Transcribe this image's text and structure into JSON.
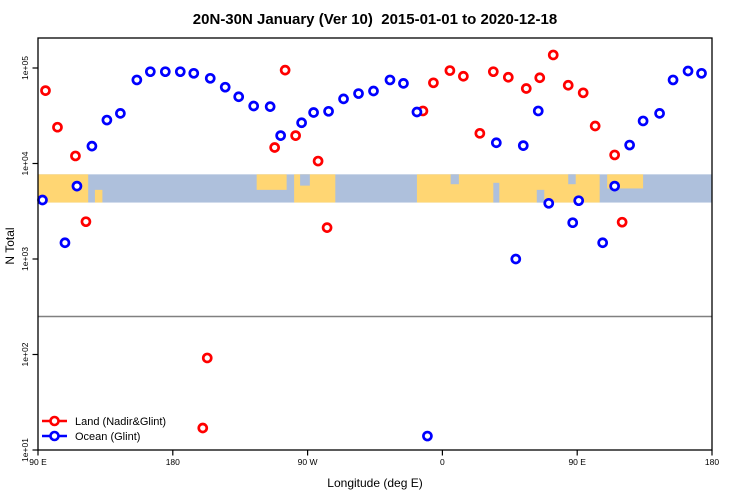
{
  "title": "20N-30N January (Ver 10)  2015-01-01 to 2020-12-18",
  "xlabel": "Longitude (deg E)",
  "ylabel": "N Total",
  "colors": {
    "land_series": "#ff0000",
    "ocean_series": "#0000ff",
    "map_land": "#ffd673",
    "map_ocean": "#aec0dc",
    "threshold_line": "#808080",
    "axis": "#000000"
  },
  "legend": {
    "items": [
      {
        "label": "Land (Nadir&Glint)",
        "color_key": "land_series"
      },
      {
        "label": "Ocean (Glint)",
        "color_key": "ocean_series"
      }
    ]
  },
  "chart_data": {
    "type": "scatter",
    "x_axis": {
      "label": "Longitude (deg E)",
      "range_unwrapped_degE": [
        90,
        540
      ],
      "ticks": [
        90,
        180,
        270,
        360,
        450,
        540
      ],
      "tick_labels": [
        "90 E",
        "180",
        "90 W",
        "0",
        "90 E",
        "180"
      ]
    },
    "y_axis": {
      "label": "N Total",
      "scale": "log",
      "ticks": [
        10,
        100,
        1000,
        10000,
        100000
      ],
      "tick_labels": [
        "1e+01",
        "1e+02",
        "1e+03",
        "1e+04",
        "1e+05"
      ]
    },
    "threshold_line_value": 250,
    "map_strip": {
      "value_top": 7700,
      "value_bottom": 3900,
      "land_segments": [
        {
          "from": 90,
          "to": 123.5,
          "top": 0,
          "bottom": 1
        },
        {
          "from": 128,
          "to": 133,
          "top": 0.55,
          "bottom": 1
        },
        {
          "from": 236,
          "to": 256,
          "top": 0,
          "bottom": 0.55
        },
        {
          "from": 261,
          "to": 288.5,
          "top": 0,
          "bottom": 1
        },
        {
          "from": 343,
          "to": 465,
          "top": 0,
          "bottom": 1
        },
        {
          "from": 470,
          "to": 494,
          "top": 0,
          "bottom": 0.5
        }
      ],
      "ocean_notches": [
        {
          "from": 265,
          "to": 271.5,
          "top": 0,
          "bottom": 0.4
        },
        {
          "from": 365.5,
          "to": 371,
          "top": 0,
          "bottom": 0.35
        },
        {
          "from": 394,
          "to": 398,
          "top": 0.3,
          "bottom": 1
        },
        {
          "from": 423,
          "to": 428,
          "top": 0.55,
          "bottom": 1
        },
        {
          "from": 444,
          "to": 449,
          "top": 0,
          "bottom": 0.35
        }
      ]
    },
    "series": [
      {
        "name": "Land (Nadir&Glint)",
        "color_key": "land_series",
        "points": [
          [
            95,
            58000
          ],
          [
            103,
            24000
          ],
          [
            115,
            12000
          ],
          [
            122,
            2460
          ],
          [
            200,
            17
          ],
          [
            203,
            92
          ],
          [
            248,
            14700
          ],
          [
            255,
            95000
          ],
          [
            262,
            19600
          ],
          [
            277,
            10600
          ],
          [
            283,
            2130
          ],
          [
            347,
            35500
          ],
          [
            354,
            70000
          ],
          [
            365,
            94000
          ],
          [
            374,
            82000
          ],
          [
            385,
            20700
          ],
          [
            394,
            91500
          ],
          [
            404,
            80000
          ],
          [
            416,
            61000
          ],
          [
            425,
            79000
          ],
          [
            434,
            137000
          ],
          [
            444,
            66000
          ],
          [
            454,
            55000
          ],
          [
            462,
            24700
          ],
          [
            475,
            12300
          ],
          [
            480,
            2430
          ]
        ]
      },
      {
        "name": "Ocean (Glint)",
        "color_key": "ocean_series",
        "points": [
          [
            93,
            4150
          ],
          [
            108,
            1480
          ],
          [
            116,
            5800
          ],
          [
            126,
            15200
          ],
          [
            136,
            28500
          ],
          [
            145,
            33500
          ],
          [
            156,
            75000
          ],
          [
            165,
            91500
          ],
          [
            175,
            91500
          ],
          [
            185,
            91500
          ],
          [
            194,
            88000
          ],
          [
            205,
            78000
          ],
          [
            215,
            63000
          ],
          [
            224,
            50000
          ],
          [
            234,
            40000
          ],
          [
            245,
            39400
          ],
          [
            252,
            19600
          ],
          [
            266,
            26700
          ],
          [
            274,
            34200
          ],
          [
            284,
            35200
          ],
          [
            294,
            47500
          ],
          [
            304,
            54000
          ],
          [
            314,
            57400
          ],
          [
            325,
            75000
          ],
          [
            334,
            69000
          ],
          [
            343,
            34600
          ],
          [
            350,
            14
          ],
          [
            396,
            16500
          ],
          [
            409,
            1000
          ],
          [
            414,
            15400
          ],
          [
            424,
            35500
          ],
          [
            431,
            3830
          ],
          [
            447,
            2400
          ],
          [
            451,
            4080
          ],
          [
            467,
            1480
          ],
          [
            475,
            5800
          ],
          [
            485,
            15600
          ],
          [
            494,
            27900
          ],
          [
            505,
            33500
          ],
          [
            514,
            75000
          ],
          [
            524,
            93000
          ],
          [
            533,
            88000
          ]
        ]
      }
    ]
  }
}
